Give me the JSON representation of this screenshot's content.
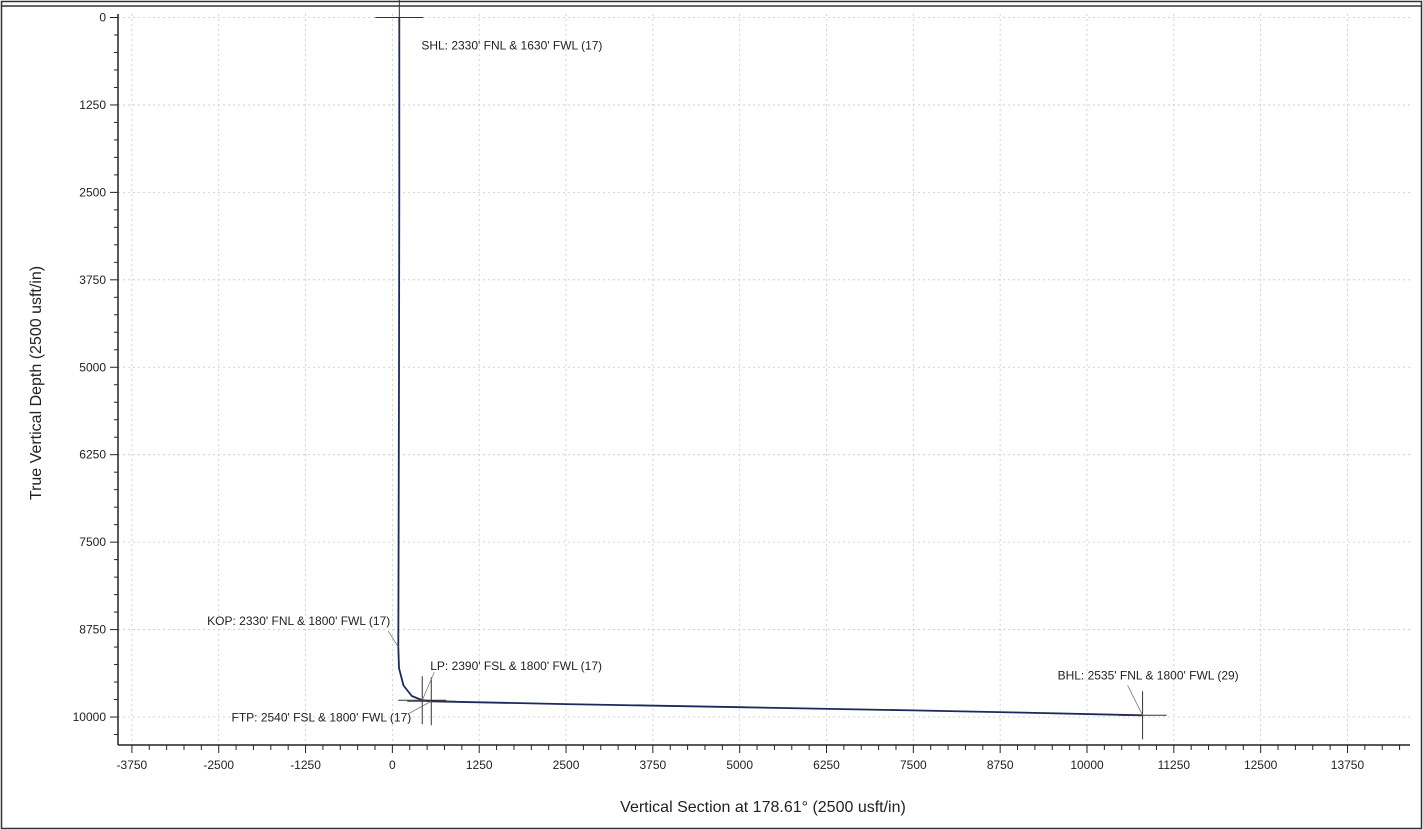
{
  "chart_data": {
    "type": "line",
    "xlabel": "Vertical Section at 178.61° (2500 usft/in)",
    "ylabel": "True Vertical Depth (2500 usft/in)",
    "xlim": [
      -3950,
      14650
    ],
    "ylim": [
      10400,
      -50
    ],
    "x_ticks": [
      -3750,
      -2500,
      -1250,
      0,
      1250,
      2500,
      3750,
      5000,
      6250,
      7500,
      8750,
      10000,
      11250,
      12500,
      13750
    ],
    "x_tick_labels": [
      "-3750",
      "-2500",
      "-1250",
      "0",
      "1250",
      "2500",
      "3750",
      "5000",
      "6250",
      "7500",
      "8750",
      "10000",
      "11250",
      "12500",
      "13750"
    ],
    "y_ticks": [
      0,
      1250,
      2500,
      3750,
      5000,
      6250,
      7500,
      8750,
      10000
    ],
    "y_tick_labels": [
      "0",
      "1250",
      "2500",
      "3750",
      "5000",
      "6250",
      "7500",
      "8750",
      "10000"
    ],
    "grid": true,
    "series": [
      {
        "color": "#1b2a5c",
        "points": [
          [
            100,
            0
          ],
          [
            100,
            2500
          ],
          [
            95,
            5000
          ],
          [
            90,
            7500
          ],
          [
            85,
            9000
          ],
          [
            95,
            9300
          ],
          [
            160,
            9550
          ],
          [
            280,
            9700
          ],
          [
            430,
            9760
          ],
          [
            560,
            9775
          ],
          [
            2500,
            9815
          ],
          [
            5000,
            9860
          ],
          [
            7500,
            9905
          ],
          [
            9000,
            9935
          ],
          [
            10800,
            9975
          ]
        ]
      }
    ],
    "markers": [
      {
        "x": 100,
        "y": 0
      },
      {
        "x": 430,
        "y": 9760
      },
      {
        "x": 560,
        "y": 9775
      },
      {
        "x": 10800,
        "y": 9975
      }
    ],
    "annotations": [
      {
        "text": "SHL: 2330' FNL & 1630' FWL (17)",
        "x": 100,
        "y": 0
      },
      {
        "text": "KOP: 2330' FNL & 1800' FWL (17)",
        "x": 85,
        "y": 9000
      },
      {
        "text": "LP: 2390' FSL & 1800' FWL (17)",
        "x": 430,
        "y": 9760
      },
      {
        "text": "FTP: 2540' FSL & 1800' FWL (17)",
        "x": 560,
        "y": 9775
      },
      {
        "text": "BHL: 2535' FNL & 1800' FWL (29)",
        "x": 10800,
        "y": 9975
      }
    ],
    "colors": {
      "grid": "#c8c8c8",
      "axis": "#222222",
      "line": "#1b2a5c"
    }
  }
}
